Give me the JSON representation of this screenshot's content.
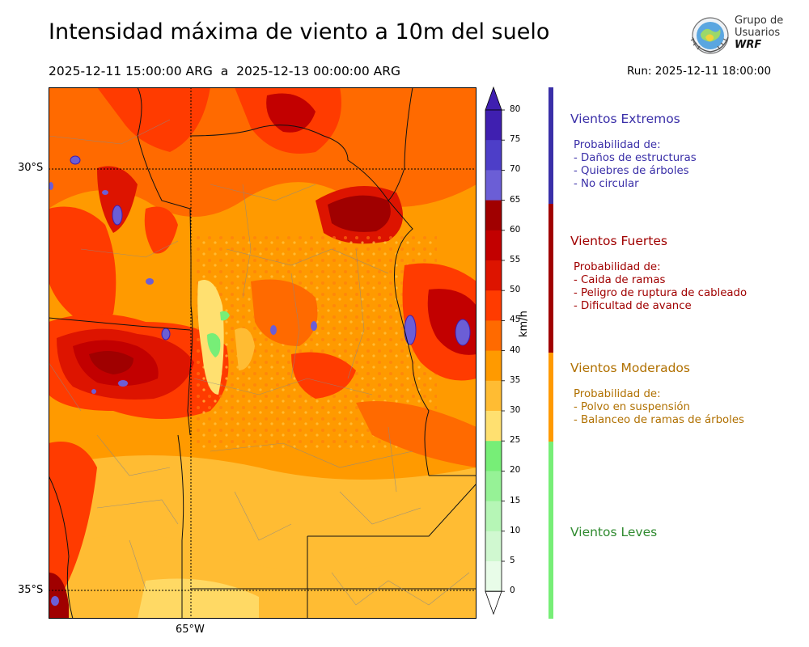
{
  "header": {
    "title": "Intensidad máxima de viento a 10m del suelo",
    "period": "2025-12-11 15:00:00 ARG  a  2025-12-13 00:00:00 ARG",
    "run": "Run: 2025-12-11 18:00:00"
  },
  "logo": {
    "line1": "Grupo de",
    "line2": "Usuarios",
    "line3": "WRF"
  },
  "map": {
    "lat_labels": [
      "30°S",
      "35°S"
    ],
    "lon_labels": [
      "65°W"
    ]
  },
  "colorbar": {
    "unit": "km/h",
    "ticks": [
      "80",
      "75",
      "70",
      "65",
      "60",
      "55",
      "50",
      "45",
      "40",
      "35",
      "30",
      "25",
      "20",
      "15",
      "10",
      "5",
      "0"
    ],
    "colors": [
      "#3f1fb0",
      "#4d3ec8",
      "#6b5ed6",
      "#a00000",
      "#c20000",
      "#dd1400",
      "#ff3b00",
      "#ff6a00",
      "#ff9a00",
      "#ffbc33",
      "#ffe070",
      "#77ee77",
      "#96f296",
      "#b6f6b6",
      "#d0f8d0",
      "#e8fce8"
    ]
  },
  "categories": [
    {
      "title": "Vientos Extremos",
      "color": "#3a2fa8",
      "bar_color": "#3a2fa8",
      "lines": [
        "Probabilidad de:",
        "- Daños de estructuras",
        "- Quiebres de árboles",
        "- No circular"
      ]
    },
    {
      "title": "Vientos Fuertes",
      "color": "#a00000",
      "bar_color": "#a00000",
      "lines": [
        "Probabilidad de:",
        "- Caida de ramas",
        "- Peligro de ruptura de cableado",
        "- Dificultad de avance"
      ]
    },
    {
      "title": "Vientos Moderados",
      "color": "#b07000",
      "bar_color": "#ff9a00",
      "lines": [
        "Probabilidad de:",
        "- Polvo en suspensión",
        "- Balanceo de ramas de árboles"
      ]
    },
    {
      "title": "Vientos Leves",
      "color": "#2f8a2f",
      "bar_color": "#77ee77",
      "lines": []
    }
  ]
}
